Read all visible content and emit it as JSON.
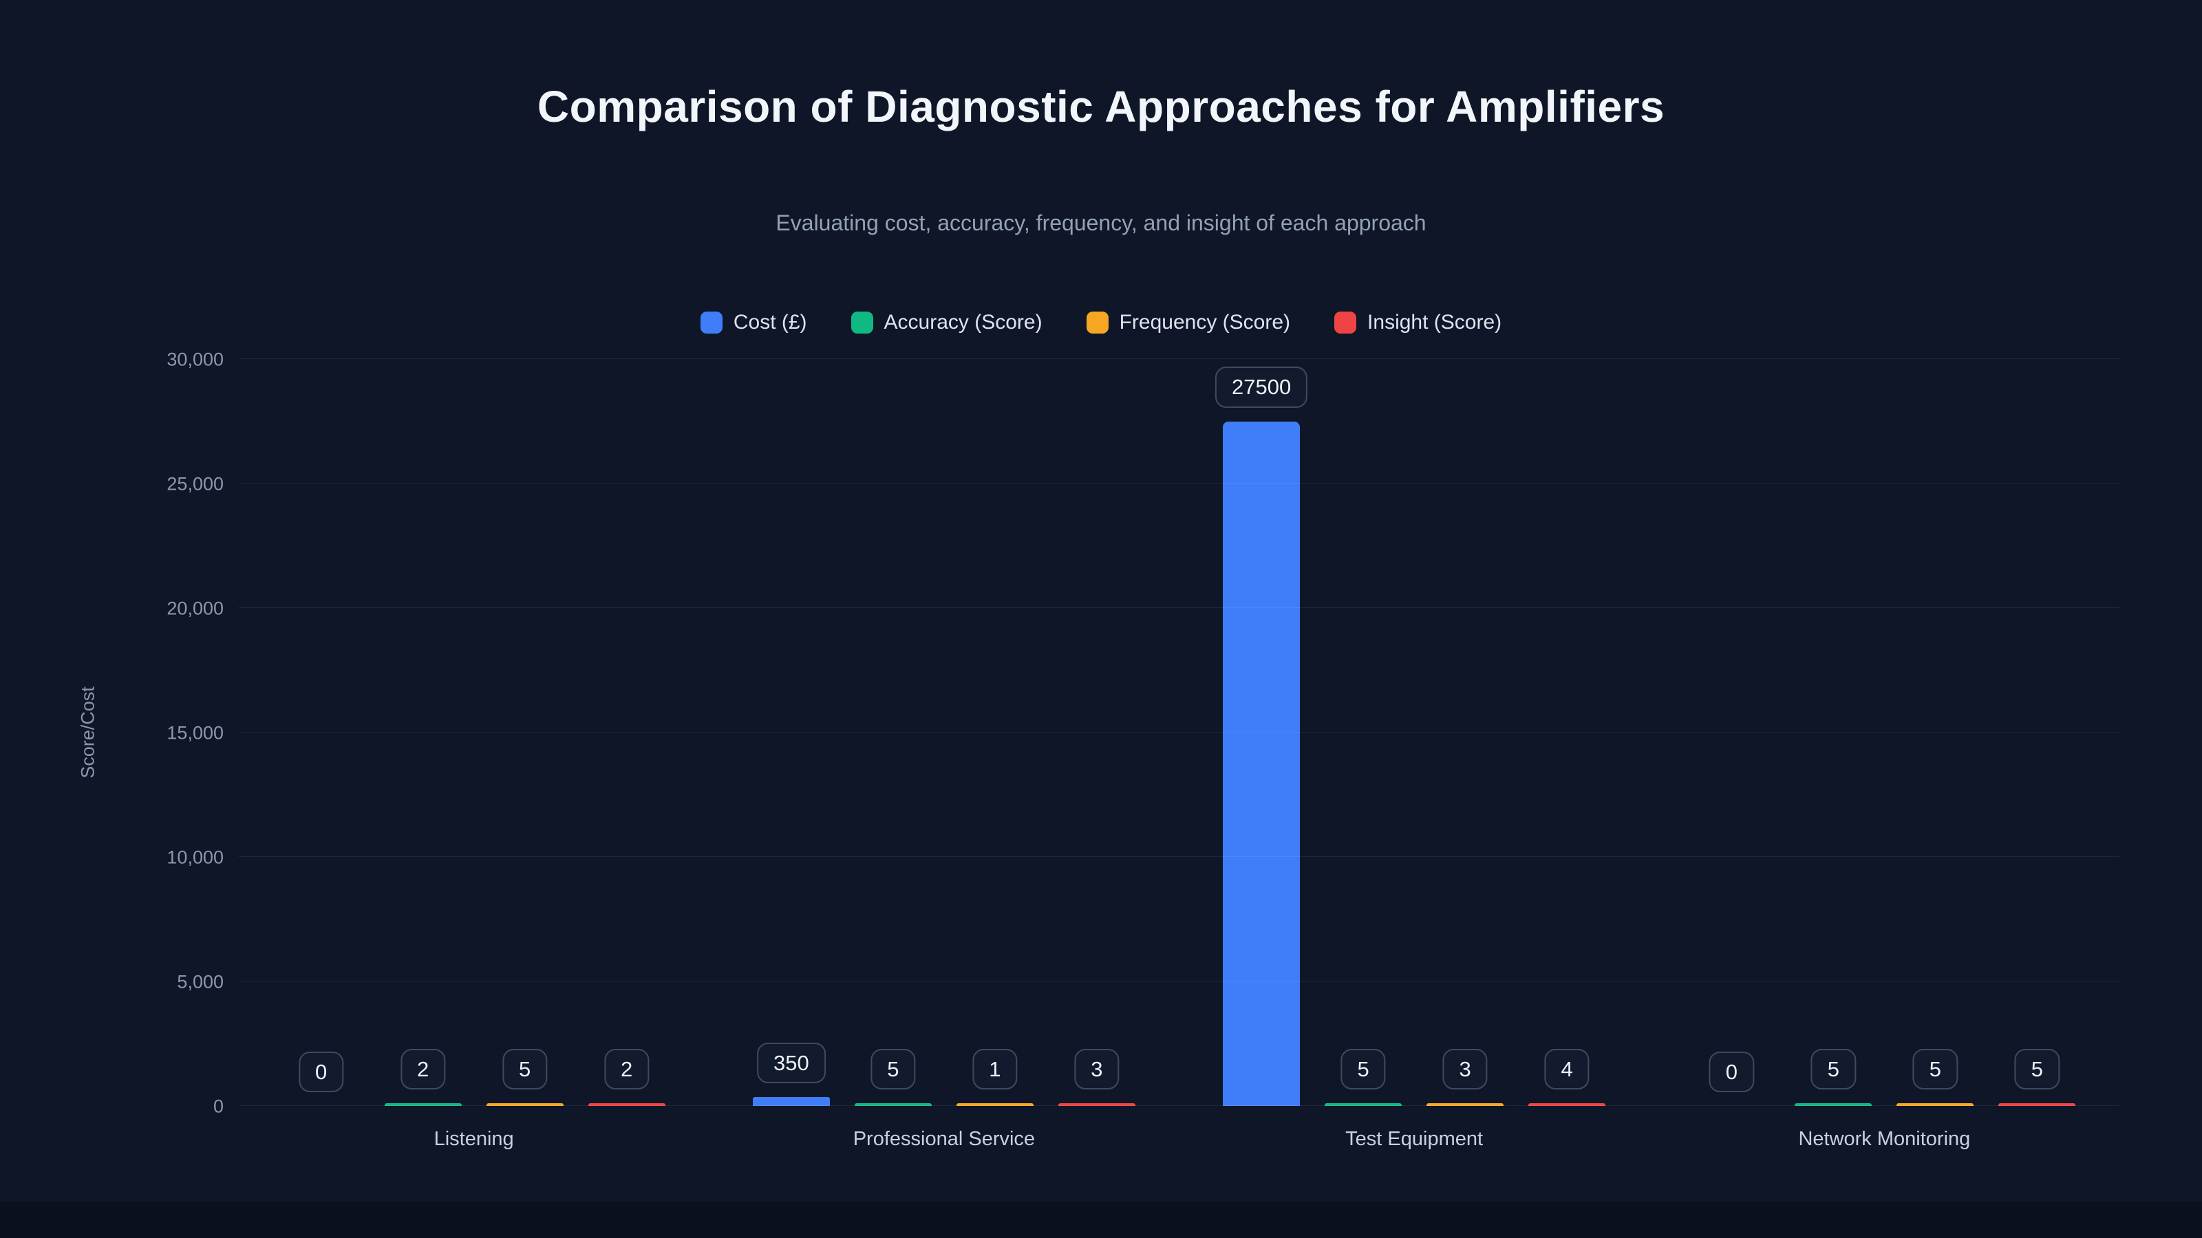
{
  "header": {
    "title": "Comparison of Diagnostic Approaches for Amplifiers",
    "subtitle": "Evaluating cost, accuracy, frequency, and insight of each approach"
  },
  "chart_data": {
    "type": "bar",
    "title": "Comparison of Diagnostic Approaches for Amplifiers",
    "subtitle": "Evaluating cost, accuracy, frequency, and insight of each approach",
    "ylabel": "Score/Cost",
    "xlabel": "",
    "ylim": [
      0,
      30000
    ],
    "ytick_step": 5000,
    "ytick_labels": [
      "0",
      "5,000",
      "10,000",
      "15,000",
      "20,000",
      "25,000",
      "30,000"
    ],
    "grid": true,
    "legend_position": "top",
    "categories": [
      "Listening",
      "Professional Service",
      "Test Equipment",
      "Network Monitoring"
    ],
    "series": [
      {
        "name": "Cost (£)",
        "color": "#3f7ef8",
        "values": [
          0,
          350,
          27500,
          0
        ]
      },
      {
        "name": "Accuracy (Score)",
        "color": "#10b981",
        "values": [
          2,
          5,
          5,
          5
        ]
      },
      {
        "name": "Frequency (Score)",
        "color": "#f5a623",
        "values": [
          5,
          1,
          3,
          5
        ]
      },
      {
        "name": "Insight (Score)",
        "color": "#ef4444",
        "values": [
          2,
          3,
          4,
          5
        ]
      }
    ],
    "data_labels": [
      [
        "0",
        "2",
        "5",
        "2"
      ],
      [
        "350",
        "5",
        "1",
        "3"
      ],
      [
        "27500",
        "5",
        "3",
        "4"
      ],
      [
        "0",
        "5",
        "5",
        "5"
      ]
    ],
    "colors": {
      "background": "#0e1627",
      "title": "#f2f5f9",
      "subtitle": "#93a1b5",
      "axis_text": "#8b98ab",
      "gridline": "rgba(255,255,255,0.08)",
      "label_box_bg": "#111b2d",
      "label_box_border": "#3f4a5e"
    }
  }
}
